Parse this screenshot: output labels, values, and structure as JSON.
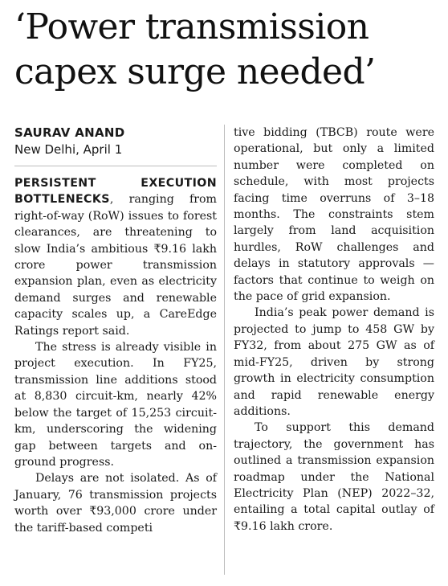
{
  "headline": "‘Power transmission capex surge needed’",
  "byline": {
    "author": "SAURAV ANAND",
    "dateline": "New Delhi, April 1"
  },
  "column1": {
    "lead": "PERSISTENT EXECUTION BOTTLENECKS",
    "p1_rest": ", ranging from right-of-way (RoW) issues to for­est clearances, are threatening to slow India’s ambitious ₹9.16 lakh crore power transmission expansion plan, even as electric­ity demand surges and renew­able capacity scales up, a CareEdge Ratings report said.",
    "p2": "The stress is already visible in project execution. In FY25, transmission line additions stood at 8,830 circuit-km, nearly 42% below the target of 15,253 circuit-km, underscor­ing the widening gap between targets and on-ground progress.",
    "p3": "Delays are not isolated. As of January, 76 transmission pro­jects worth over ₹93,000 crore under the tariff-based competi­"
  },
  "column2": {
    "p1": "tive bidding (TBCB) route were operational, but only a limited number were completed on schedule, with most projects facing time overruns of 3–18 months. The constraints stem largely from land acquisition hurdles, RoW challenges and delays in statutory approvals — factors that continue to weigh on the pace of grid expansion.",
    "p2": "India’s peak power demand is projected to jump to 458 GW by FY32, from about 275 GW as of mid-FY25, driven by strong growth in electricity consump­tion and rapid renewable energy additions.",
    "p3": "To support this demand trajectory, the government has outlined a transmission expansion roadmap under the National Electricity Plan (NEP) 2022–32, entailing a total cap­ital outlay of ₹9.16 lakh crore."
  }
}
